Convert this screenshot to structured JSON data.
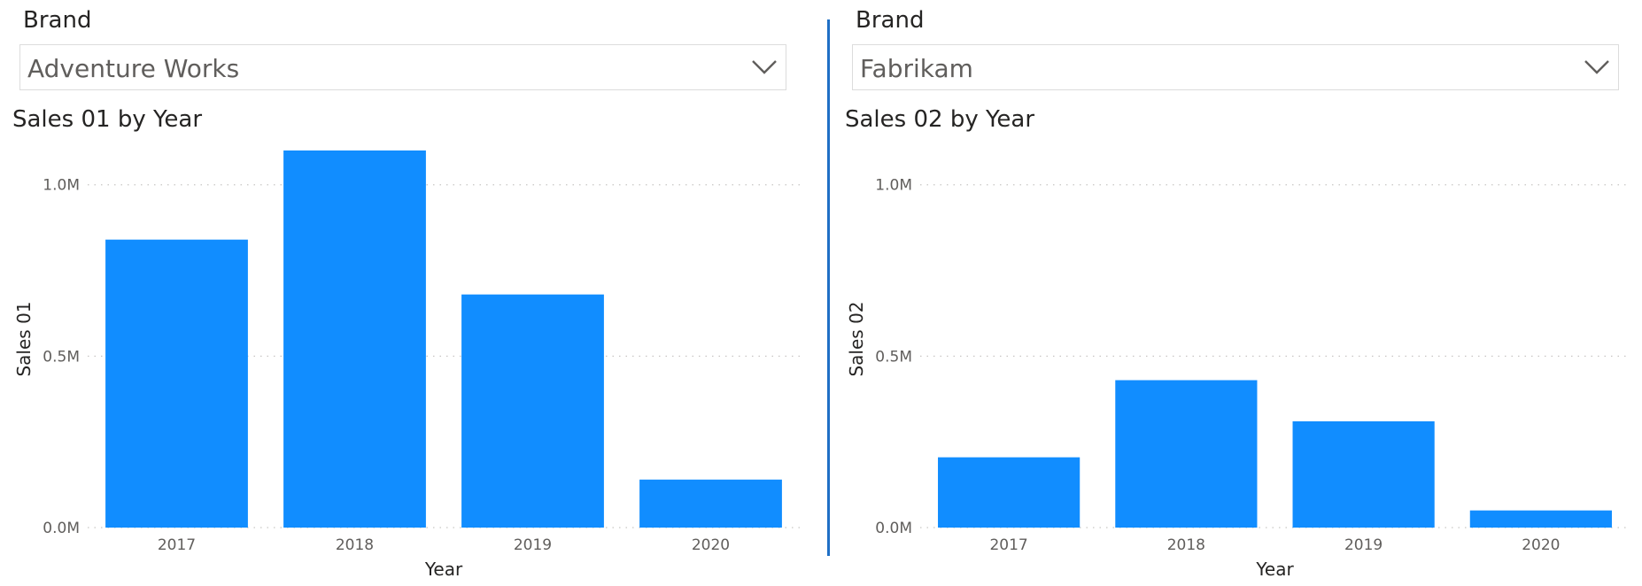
{
  "left": {
    "slicer": {
      "title": "Brand",
      "selected": "Adventure Works"
    },
    "chart_title": "Sales 01 by Year"
  },
  "right": {
    "slicer": {
      "title": "Brand",
      "selected": "Fabrikam"
    },
    "chart_title": "Sales 02 by Year"
  },
  "colors": {
    "bar": "#118dff",
    "divider": "#1f6fc5"
  },
  "icons": {
    "dropdown": "chevron-down-icon"
  },
  "chart_data": [
    {
      "type": "bar",
      "title": "Sales 01 by Year",
      "categories": [
        "2017",
        "2018",
        "2019",
        "2020"
      ],
      "values": [
        0.84,
        1.1,
        0.68,
        0.14
      ],
      "xlabel": "Year",
      "ylabel": "Sales 01",
      "ylim": [
        0,
        1.1
      ],
      "yticks": [
        {
          "value": 0,
          "label": "0.0M"
        },
        {
          "value": 0.5,
          "label": "0.5M"
        },
        {
          "value": 1.0,
          "label": "1.0M"
        }
      ],
      "grid": true
    },
    {
      "type": "bar",
      "title": "Sales 02 by Year",
      "categories": [
        "2017",
        "2018",
        "2019",
        "2020"
      ],
      "values": [
        0.205,
        0.43,
        0.31,
        0.05
      ],
      "xlabel": "Year",
      "ylabel": "Sales 02",
      "ylim": [
        0,
        1.1
      ],
      "yticks": [
        {
          "value": 0,
          "label": "0.0M"
        },
        {
          "value": 0.5,
          "label": "0.5M"
        },
        {
          "value": 1.0,
          "label": "1.0M"
        }
      ],
      "grid": true
    }
  ]
}
